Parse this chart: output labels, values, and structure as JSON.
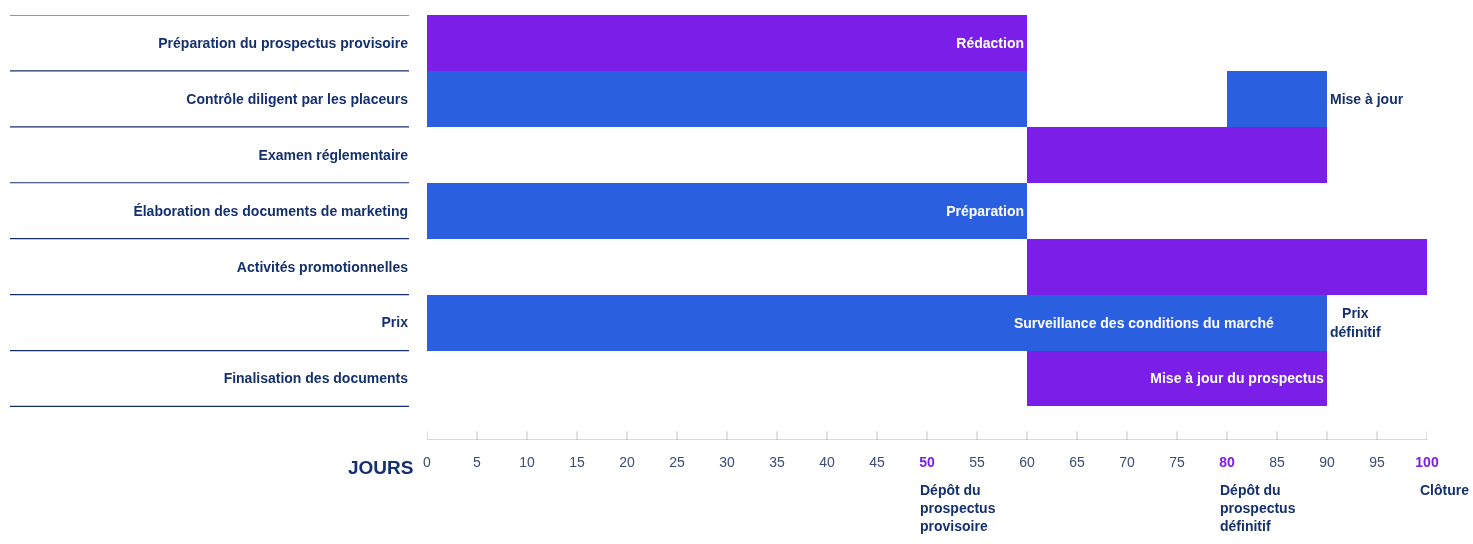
{
  "chart_data": {
    "type": "bar",
    "orientation": "horizontal",
    "xlabel": "JOURS",
    "categories": [
      "Préparation du prospectus provisoire",
      "Contrôle diligent par les placeurs",
      "Examen réglementaire",
      "Élaboration des documents de marketing",
      "Activités promotionnelles",
      "Prix",
      "Finalisation des documents"
    ],
    "series": [
      {
        "color": "#7a1ee8",
        "values": [
          60,
          null,
          30,
          null,
          40,
          null,
          30
        ],
        "base": [
          0,
          null,
          60,
          null,
          60,
          null,
          60
        ],
        "value_labels": [
          "Rédaction",
          null,
          null,
          null,
          null,
          null,
          "Mise à jour du prospectus"
        ]
      },
      {
        "color": "#2a5fe0",
        "values": [
          null,
          60,
          null,
          60,
          null,
          85,
          null
        ],
        "base": [
          null,
          0,
          null,
          0,
          null,
          0,
          null
        ],
        "value_labels": [
          null,
          null,
          null,
          "Préparation",
          null,
          "Surveillance des conditions du marché",
          null
        ]
      },
      {
        "color": "#2a5fe0",
        "values": [
          null,
          10,
          null,
          null,
          null,
          5,
          null
        ],
        "base": [
          null,
          80,
          null,
          null,
          null,
          85,
          null
        ],
        "value_labels": [
          null,
          "Mise à jour",
          null,
          null,
          null,
          "Prix définitif",
          null
        ]
      }
    ],
    "xlim": [
      0,
      100
    ],
    "xticks": [
      0,
      5,
      10,
      15,
      20,
      25,
      30,
      35,
      40,
      45,
      {
        "value": 50,
        "label": "50"
      },
      55,
      60,
      65,
      70,
      75,
      {
        "value": 80,
        "label": "80"
      },
      85,
      90,
      95,
      {
        "value": 100,
        "label": "100"
      }
    ],
    "annotations": [
      "Dépôt du prospectus provisoire",
      "Dépôt du prospectus définitif",
      "Clôture"
    ]
  }
}
